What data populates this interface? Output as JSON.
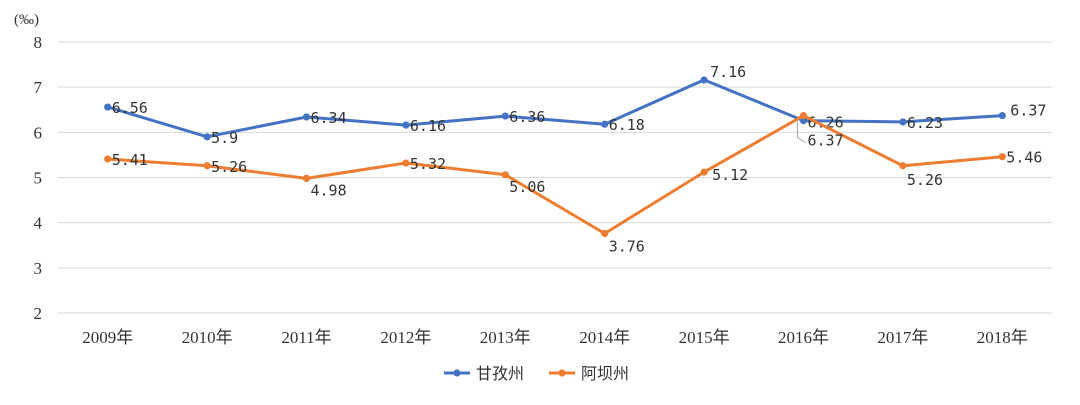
{
  "chart_data": {
    "type": "line",
    "y_unit": "(‰)",
    "categories": [
      "2009年",
      "2010年",
      "2011年",
      "2012年",
      "2013年",
      "2014年",
      "2015年",
      "2016年",
      "2017年",
      "2018年"
    ],
    "ylim": [
      2,
      8
    ],
    "yticks": [
      "2",
      "3",
      "4",
      "5",
      "6",
      "7",
      "8"
    ],
    "grid": true,
    "legend_position": "bottom",
    "series": [
      {
        "name": "甘孜州",
        "color": "#4472C4",
        "values": [
          6.56,
          5.9,
          6.34,
          6.16,
          6.36,
          6.18,
          7.16,
          6.26,
          6.23,
          6.37
        ],
        "labels": [
          "6.56",
          "5.9",
          "6.34",
          "6.16",
          "6.36",
          "6.18",
          "7.16",
          "6.26",
          "6.23",
          "6.37"
        ]
      },
      {
        "name": "阿坝州",
        "color": "#ED7D31",
        "values": [
          5.41,
          5.26,
          4.98,
          5.32,
          5.06,
          3.76,
          5.12,
          6.37,
          5.26,
          5.46
        ],
        "labels": [
          "5.41",
          "5.26",
          "4.98",
          "5.32",
          "5.06",
          "3.76",
          "5.12",
          "6.37",
          "5.26",
          "5.46"
        ]
      }
    ]
  }
}
